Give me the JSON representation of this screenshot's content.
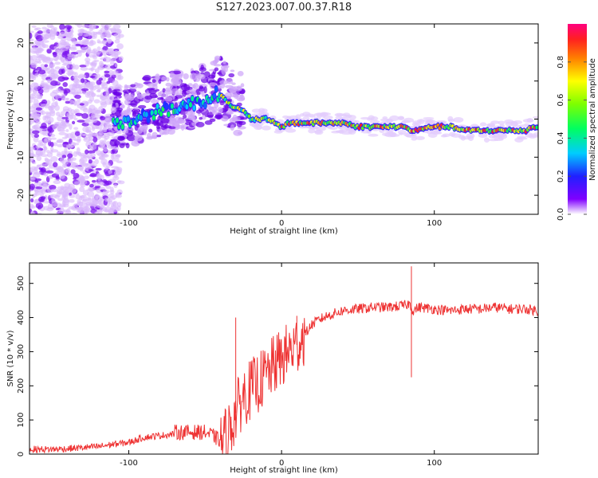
{
  "figure": {
    "title": "S127.2023.007.00.37.R18"
  },
  "chart_data": [
    {
      "type": "heatmap",
      "xlabel": "Height of straight line (km)",
      "ylabel": "Frequency (Hz)",
      "xlim": [
        -165,
        168
      ],
      "ylim": [
        -25,
        25
      ],
      "xticks": [
        -100,
        0,
        100
      ],
      "yticks": [
        -20,
        -10,
        0,
        10,
        20
      ],
      "grid": false,
      "colorbar": {
        "label": "Normalized spectral amplitude",
        "range": [
          0,
          1
        ],
        "ticks": [
          0.0,
          0.2,
          0.4,
          0.6,
          0.8
        ]
      },
      "peak_track": {
        "x": [
          -110,
          -100,
          -90,
          -80,
          -70,
          -60,
          -50,
          -45,
          -40,
          -35,
          -30,
          -25,
          -20,
          -15,
          -10,
          -5,
          0,
          5,
          10,
          20,
          30,
          40,
          50,
          60,
          70,
          80,
          85,
          90,
          95,
          100,
          110,
          120,
          130,
          140,
          150,
          160,
          165
        ],
        "y": [
          -1,
          -1,
          1,
          2,
          3,
          4,
          5,
          6,
          7,
          4,
          3,
          2,
          0,
          0,
          0,
          -1,
          -2,
          -1,
          -1,
          -1,
          -1,
          -1,
          -2,
          -2,
          -2,
          -2,
          -3,
          -3,
          -2,
          -2,
          -2,
          -3,
          -3,
          -3,
          -3,
          -3,
          -2
        ]
      }
    },
    {
      "type": "line",
      "xlabel": "Height of straight line (km)",
      "ylabel": "SNR (10 * v/v)",
      "xlim": [
        -165,
        168
      ],
      "ylim": [
        0,
        560
      ],
      "xticks": [
        -100,
        0,
        100
      ],
      "yticks": [
        0,
        100,
        200,
        300,
        400,
        500
      ],
      "series": [
        {
          "color": "#ee3333",
          "x": [
            -165,
            -150,
            -140,
            -130,
            -120,
            -110,
            -100,
            -90,
            -80,
            -70,
            -60,
            -50,
            -45,
            -40,
            -35,
            -30,
            -25,
            -20,
            -15,
            -10,
            -5,
            0,
            5,
            10,
            15,
            20,
            25,
            30,
            40,
            50,
            60,
            70,
            80,
            84,
            86,
            90,
            100,
            110,
            120,
            130,
            140,
            150,
            160,
            168
          ],
          "y": [
            10,
            10,
            12,
            15,
            18,
            25,
            30,
            45,
            50,
            55,
            55,
            55,
            45,
            30,
            60,
            120,
            170,
            190,
            210,
            230,
            260,
            280,
            300,
            320,
            350,
            380,
            395,
            405,
            420,
            425,
            430,
            430,
            435,
            440,
            420,
            430,
            425,
            420,
            425,
            425,
            430,
            425,
            425,
            420
          ]
        }
      ],
      "annotations": [
        {
          "x": -30,
          "y": 400
        },
        {
          "x": 10,
          "y": 405
        },
        {
          "x": 85,
          "y": 225
        },
        {
          "x": 85,
          "y": 550
        }
      ]
    }
  ]
}
